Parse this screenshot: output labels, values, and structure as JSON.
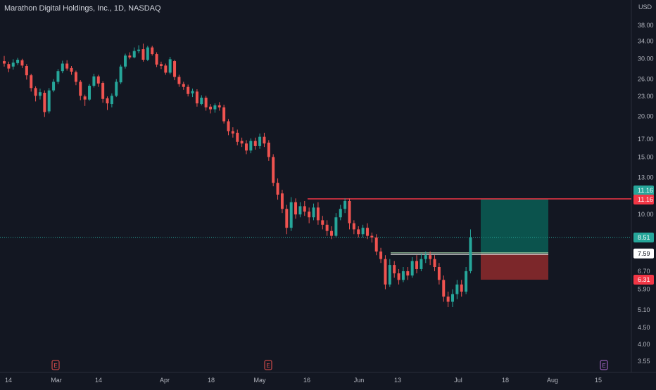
{
  "header": {
    "title": "Marathon Digital Holdings, Inc., 1D, NASDAQ",
    "currency": "USD"
  },
  "colors": {
    "background": "#131722",
    "up": "#26a69a",
    "down": "#ef5350",
    "target": "#f23645",
    "profit_zone": "#0b5e55",
    "loss_zone": "#8f2a2c",
    "axis_text": "#b2b5be"
  },
  "earnings_icons": [
    {
      "label": "E",
      "date": "Feb 28",
      "color": "#ef5350"
    },
    {
      "label": "E",
      "date": "May 09",
      "color": "#ef5350"
    },
    {
      "label": "E",
      "date": "Aug 03",
      "color": "#b26dd6"
    }
  ],
  "chart_data": {
    "type": "candlestick",
    "title": "Marathon Digital Holdings, Inc., 1D, NASDAQ",
    "yscale": "log",
    "ylim": [
      3.3,
      42
    ],
    "y_ticks": [
      "38.00",
      "34.00",
      "30.00",
      "26.00",
      "23.00",
      "20.00",
      "17.00",
      "15.00",
      "13.00",
      "10.00",
      "7.59",
      "6.70",
      "5.90",
      "5.10",
      "4.50",
      "4.00",
      "3.55"
    ],
    "x_ticks": [
      "14",
      "Mar",
      "14",
      "Apr",
      "18",
      "May",
      "16",
      "Jun",
      "13",
      "Jul",
      "18",
      "Aug",
      "15"
    ],
    "price_labels": [
      {
        "text": "11.16",
        "value": 11.16,
        "style": "up"
      },
      {
        "text": "11.16",
        "value": 11.16,
        "style": "down"
      },
      {
        "text": "8.51",
        "value": 8.51,
        "style": "up"
      },
      {
        "text": "7.59",
        "value": 7.59,
        "style": "plain"
      },
      {
        "text": "6.31",
        "value": 6.31,
        "style": "down"
      }
    ],
    "levels": {
      "horizontal_line": 11.16,
      "last_price": 8.51,
      "entry": 7.59,
      "target": 11.16,
      "stop": 6.31
    },
    "series": [
      {
        "name": "",
        "values": [
          [
            29.5,
            29.0,
            30.6,
            28.4
          ],
          [
            28.9,
            28.0,
            29.4,
            27.3
          ],
          [
            28.4,
            29.2,
            29.9,
            27.8
          ],
          [
            29.1,
            29.8,
            30.2,
            28.7
          ],
          [
            29.7,
            28.6,
            30.0,
            28.1
          ],
          [
            28.5,
            26.7,
            28.9,
            25.9
          ],
          [
            26.7,
            24.4,
            27.0,
            23.8
          ],
          [
            24.4,
            23.1,
            24.7,
            22.2
          ],
          [
            23.1,
            23.7,
            24.3,
            22.5
          ],
          [
            23.6,
            20.6,
            24.0,
            19.9
          ],
          [
            20.7,
            24.0,
            24.4,
            20.4
          ],
          [
            24.0,
            25.5,
            26.0,
            23.7
          ],
          [
            25.5,
            27.5,
            27.9,
            25.1
          ],
          [
            27.5,
            29.0,
            29.6,
            27.1
          ],
          [
            29.0,
            28.0,
            29.7,
            27.6
          ],
          [
            28.1,
            27.4,
            28.5,
            26.8
          ],
          [
            27.3,
            25.5,
            27.6,
            24.9
          ],
          [
            25.5,
            23.1,
            25.8,
            22.4
          ],
          [
            23.0,
            22.5,
            23.3,
            21.5
          ],
          [
            22.5,
            24.8,
            25.1,
            22.3
          ],
          [
            24.8,
            26.5,
            27.0,
            24.5
          ],
          [
            26.5,
            25.2,
            26.8,
            24.6
          ],
          [
            25.3,
            22.6,
            25.6,
            22.0
          ],
          [
            22.7,
            21.9,
            23.0,
            20.9
          ],
          [
            21.8,
            23.1,
            23.5,
            21.3
          ],
          [
            23.1,
            25.5,
            26.0,
            22.9
          ],
          [
            25.4,
            28.4,
            28.8,
            25.1
          ],
          [
            28.4,
            30.7,
            31.1,
            28.0
          ],
          [
            30.7,
            30.3,
            31.4,
            29.9
          ],
          [
            30.3,
            31.7,
            32.5,
            30.1
          ],
          [
            31.7,
            32.0,
            33.0,
            31.2
          ],
          [
            32.1,
            29.8,
            33.4,
            29.4
          ],
          [
            29.8,
            32.5,
            32.9,
            29.5
          ],
          [
            32.5,
            31.0,
            32.9,
            30.7
          ],
          [
            31.0,
            28.8,
            31.4,
            28.3
          ],
          [
            28.9,
            28.5,
            29.4,
            27.9
          ],
          [
            28.6,
            27.2,
            29.0,
            26.8
          ],
          [
            27.2,
            29.9,
            30.4,
            26.9
          ],
          [
            29.5,
            26.4,
            29.8,
            25.8
          ],
          [
            26.4,
            25.1,
            26.8,
            24.6
          ],
          [
            25.1,
            24.6,
            25.5,
            24.1
          ],
          [
            24.6,
            23.4,
            25.0,
            23.0
          ],
          [
            23.5,
            23.9,
            24.3,
            22.9
          ],
          [
            23.8,
            21.9,
            24.2,
            21.4
          ],
          [
            21.8,
            22.8,
            23.2,
            21.6
          ],
          [
            22.8,
            21.3,
            23.1,
            20.8
          ],
          [
            21.4,
            21.0,
            21.8,
            20.4
          ],
          [
            21.0,
            21.6,
            21.9,
            20.5
          ],
          [
            21.6,
            21.3,
            22.1,
            20.8
          ],
          [
            21.3,
            19.3,
            21.7,
            19.0
          ],
          [
            19.3,
            18.0,
            19.6,
            17.5
          ],
          [
            18.0,
            17.7,
            18.5,
            17.2
          ],
          [
            17.8,
            16.7,
            18.2,
            16.3
          ],
          [
            16.8,
            16.5,
            17.2,
            16.1
          ],
          [
            16.5,
            15.7,
            16.9,
            15.3
          ],
          [
            15.7,
            16.8,
            17.1,
            15.4
          ],
          [
            16.8,
            16.2,
            17.2,
            15.8
          ],
          [
            16.2,
            17.3,
            17.7,
            15.9
          ],
          [
            17.3,
            16.5,
            17.8,
            16.1
          ],
          [
            16.6,
            15.0,
            16.9,
            14.6
          ],
          [
            15.0,
            12.5,
            15.3,
            12.2
          ],
          [
            12.5,
            11.5,
            12.9,
            11.1
          ],
          [
            11.6,
            10.4,
            11.9,
            10.1
          ],
          [
            10.4,
            9.1,
            10.7,
            8.7
          ],
          [
            9.1,
            10.9,
            11.3,
            8.9
          ],
          [
            10.9,
            10.0,
            11.2,
            9.7
          ],
          [
            10.0,
            10.6,
            10.9,
            9.8
          ],
          [
            10.6,
            10.2,
            11.0,
            9.9
          ],
          [
            10.2,
            9.8,
            10.5,
            9.4
          ],
          [
            9.8,
            10.5,
            10.8,
            9.6
          ],
          [
            10.5,
            9.6,
            10.9,
            9.3
          ],
          [
            9.6,
            9.3,
            9.9,
            9.0
          ],
          [
            9.3,
            8.9,
            9.6,
            8.6
          ],
          [
            8.9,
            8.6,
            9.2,
            8.4
          ],
          [
            8.6,
            9.8,
            10.1,
            8.5
          ],
          [
            9.8,
            10.4,
            10.7,
            9.6
          ],
          [
            10.4,
            11.0,
            11.2,
            10.1
          ],
          [
            11.0,
            9.4,
            11.2,
            9.0
          ],
          [
            9.4,
            9.0,
            9.6,
            8.7
          ],
          [
            9.0,
            8.7,
            9.2,
            8.5
          ],
          [
            8.7,
            9.1,
            9.3,
            8.5
          ],
          [
            9.1,
            8.6,
            9.4,
            8.4
          ],
          [
            8.6,
            8.5,
            8.8,
            8.2
          ],
          [
            8.5,
            7.7,
            8.7,
            7.5
          ],
          [
            7.7,
            7.3,
            7.9,
            7.1
          ],
          [
            7.3,
            6.1,
            7.5,
            5.9
          ],
          [
            6.1,
            7.0,
            7.3,
            6.0
          ],
          [
            7.0,
            6.6,
            7.2,
            6.4
          ],
          [
            6.6,
            6.3,
            6.8,
            6.1
          ],
          [
            6.3,
            6.7,
            6.9,
            6.2
          ],
          [
            6.7,
            6.5,
            6.9,
            6.3
          ],
          [
            6.5,
            7.2,
            7.4,
            6.4
          ],
          [
            7.2,
            6.8,
            7.5,
            6.6
          ],
          [
            6.8,
            7.3,
            7.6,
            6.7
          ],
          [
            7.3,
            7.5,
            7.7,
            7.1
          ],
          [
            7.5,
            7.3,
            7.7,
            7.0
          ],
          [
            7.3,
            6.9,
            7.5,
            6.7
          ],
          [
            6.9,
            6.3,
            7.1,
            6.1
          ],
          [
            6.3,
            5.6,
            6.5,
            5.4
          ],
          [
            5.6,
            5.4,
            5.8,
            5.2
          ],
          [
            5.4,
            5.7,
            5.9,
            5.2
          ],
          [
            5.7,
            6.1,
            6.3,
            5.5
          ],
          [
            6.1,
            5.8,
            6.3,
            5.6
          ],
          [
            5.8,
            6.7,
            6.9,
            5.7
          ],
          [
            6.7,
            8.5,
            9.0,
            6.6
          ]
        ]
      }
    ]
  }
}
